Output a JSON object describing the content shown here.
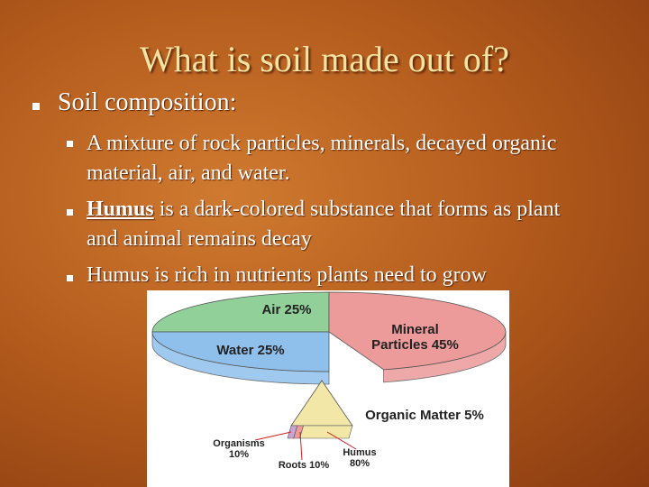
{
  "title": "What is soil made out of?",
  "bullet": "Soil composition:",
  "sub_bullets": [
    {
      "text": "A mixture of rock particles, minerals, decayed organic material, air, and water."
    },
    {
      "lead": "Humus",
      "text": "is a dark-colored substance that forms as plant and animal remains decay"
    },
    {
      "text": "Humus is rich in nutrients plants need to grow"
    }
  ],
  "pie": {
    "slices": [
      {
        "name": "Air",
        "value": 25,
        "value_label": "25%",
        "color": "#92d09a"
      },
      {
        "name": "Mineral Particles",
        "value": 45,
        "value_label": "45%",
        "color": "#ec9a9a"
      },
      {
        "name": "Organic Matter",
        "value": 5,
        "value_label": "5%",
        "color": "#f3e7a8"
      },
      {
        "name": "Water",
        "value": 25,
        "value_label": "25%",
        "color": "#8fc0ec"
      }
    ],
    "organic_parts": [
      {
        "name": "Organisms",
        "value": 10,
        "value_label": "10%",
        "color": "#c9a3d4"
      },
      {
        "name": "Roots",
        "value": 10,
        "value_label": "10%",
        "color": "#ee9b9b"
      },
      {
        "name": "Humus",
        "value": 80,
        "value_label": "80%",
        "color": "#f3e7a8"
      }
    ]
  }
}
